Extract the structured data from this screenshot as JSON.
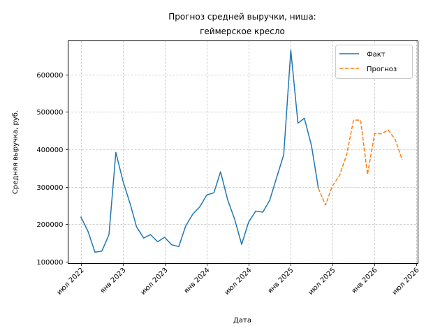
{
  "chart_data": {
    "type": "line",
    "title_lines": [
      "Прогноз средней выручки, ниша:",
      "геймерское кресло"
    ],
    "xlabel": "Дата",
    "ylabel": "Средняя выручка, руб.",
    "ylim": [
      95000,
      690000
    ],
    "xlim": [
      "2022-05-07",
      "2026-07-09"
    ],
    "grid": true,
    "legend_position": "top-right",
    "x_ticks": [
      {
        "date": "2022-07-01",
        "label": "июл 2022"
      },
      {
        "date": "2023-01-01",
        "label": "янв 2023"
      },
      {
        "date": "2023-07-01",
        "label": "июл 2023"
      },
      {
        "date": "2024-01-01",
        "label": "янв 2024"
      },
      {
        "date": "2024-07-01",
        "label": "июл 2024"
      },
      {
        "date": "2025-01-01",
        "label": "янв 2025"
      },
      {
        "date": "2025-07-01",
        "label": "июл 2025"
      },
      {
        "date": "2026-01-01",
        "label": "янв 2026"
      },
      {
        "date": "2026-07-01",
        "label": "июл 2026"
      }
    ],
    "y_ticks": [
      {
        "value": 100000,
        "label": "100000"
      },
      {
        "value": 200000,
        "label": "200000"
      },
      {
        "value": 300000,
        "label": "300000"
      },
      {
        "value": 400000,
        "label": "400000"
      },
      {
        "value": 500000,
        "label": "500000"
      },
      {
        "value": 600000,
        "label": "600000"
      }
    ],
    "series": [
      {
        "name": "Факт",
        "color": "#1f77b4",
        "style": "solid",
        "points": [
          [
            "2022-07-01",
            220000
          ],
          [
            "2022-08-01",
            182000
          ],
          [
            "2022-09-01",
            125000
          ],
          [
            "2022-10-01",
            128000
          ],
          [
            "2022-11-01",
            172000
          ],
          [
            "2022-12-01",
            392000
          ],
          [
            "2023-01-01",
            315000
          ],
          [
            "2023-02-01",
            255000
          ],
          [
            "2023-03-01",
            193000
          ],
          [
            "2023-04-01",
            163000
          ],
          [
            "2023-05-01",
            172000
          ],
          [
            "2023-06-01",
            153000
          ],
          [
            "2023-07-01",
            165000
          ],
          [
            "2023-08-01",
            145000
          ],
          [
            "2023-09-01",
            140000
          ],
          [
            "2023-10-01",
            195000
          ],
          [
            "2023-11-01",
            227000
          ],
          [
            "2023-12-01",
            246000
          ],
          [
            "2024-01-01",
            278000
          ],
          [
            "2024-02-01",
            284000
          ],
          [
            "2024-03-01",
            340000
          ],
          [
            "2024-04-01",
            265000
          ],
          [
            "2024-05-01",
            214000
          ],
          [
            "2024-06-01",
            146000
          ],
          [
            "2024-07-01",
            205000
          ],
          [
            "2024-08-01",
            235000
          ],
          [
            "2024-09-01",
            232000
          ],
          [
            "2024-10-01",
            264000
          ],
          [
            "2024-11-01",
            326000
          ],
          [
            "2024-12-01",
            385000
          ],
          [
            "2025-01-01",
            665000
          ],
          [
            "2025-02-01",
            470000
          ],
          [
            "2025-03-01",
            483000
          ],
          [
            "2025-04-01",
            410000
          ],
          [
            "2025-05-01",
            296000
          ]
        ]
      },
      {
        "name": "Прогноз",
        "color": "#ff7f0e",
        "style": "dashed",
        "points": [
          [
            "2025-05-01",
            296000
          ],
          [
            "2025-06-01",
            251000
          ],
          [
            "2025-07-01",
            302000
          ],
          [
            "2025-08-01",
            330000
          ],
          [
            "2025-09-01",
            385000
          ],
          [
            "2025-10-01",
            478000
          ],
          [
            "2025-11-01",
            478000
          ],
          [
            "2025-12-01",
            333000
          ],
          [
            "2026-01-01",
            442000
          ],
          [
            "2026-02-01",
            442000
          ],
          [
            "2026-03-01",
            452000
          ],
          [
            "2026-04-01",
            426000
          ],
          [
            "2026-05-01",
            372000
          ]
        ]
      }
    ]
  }
}
